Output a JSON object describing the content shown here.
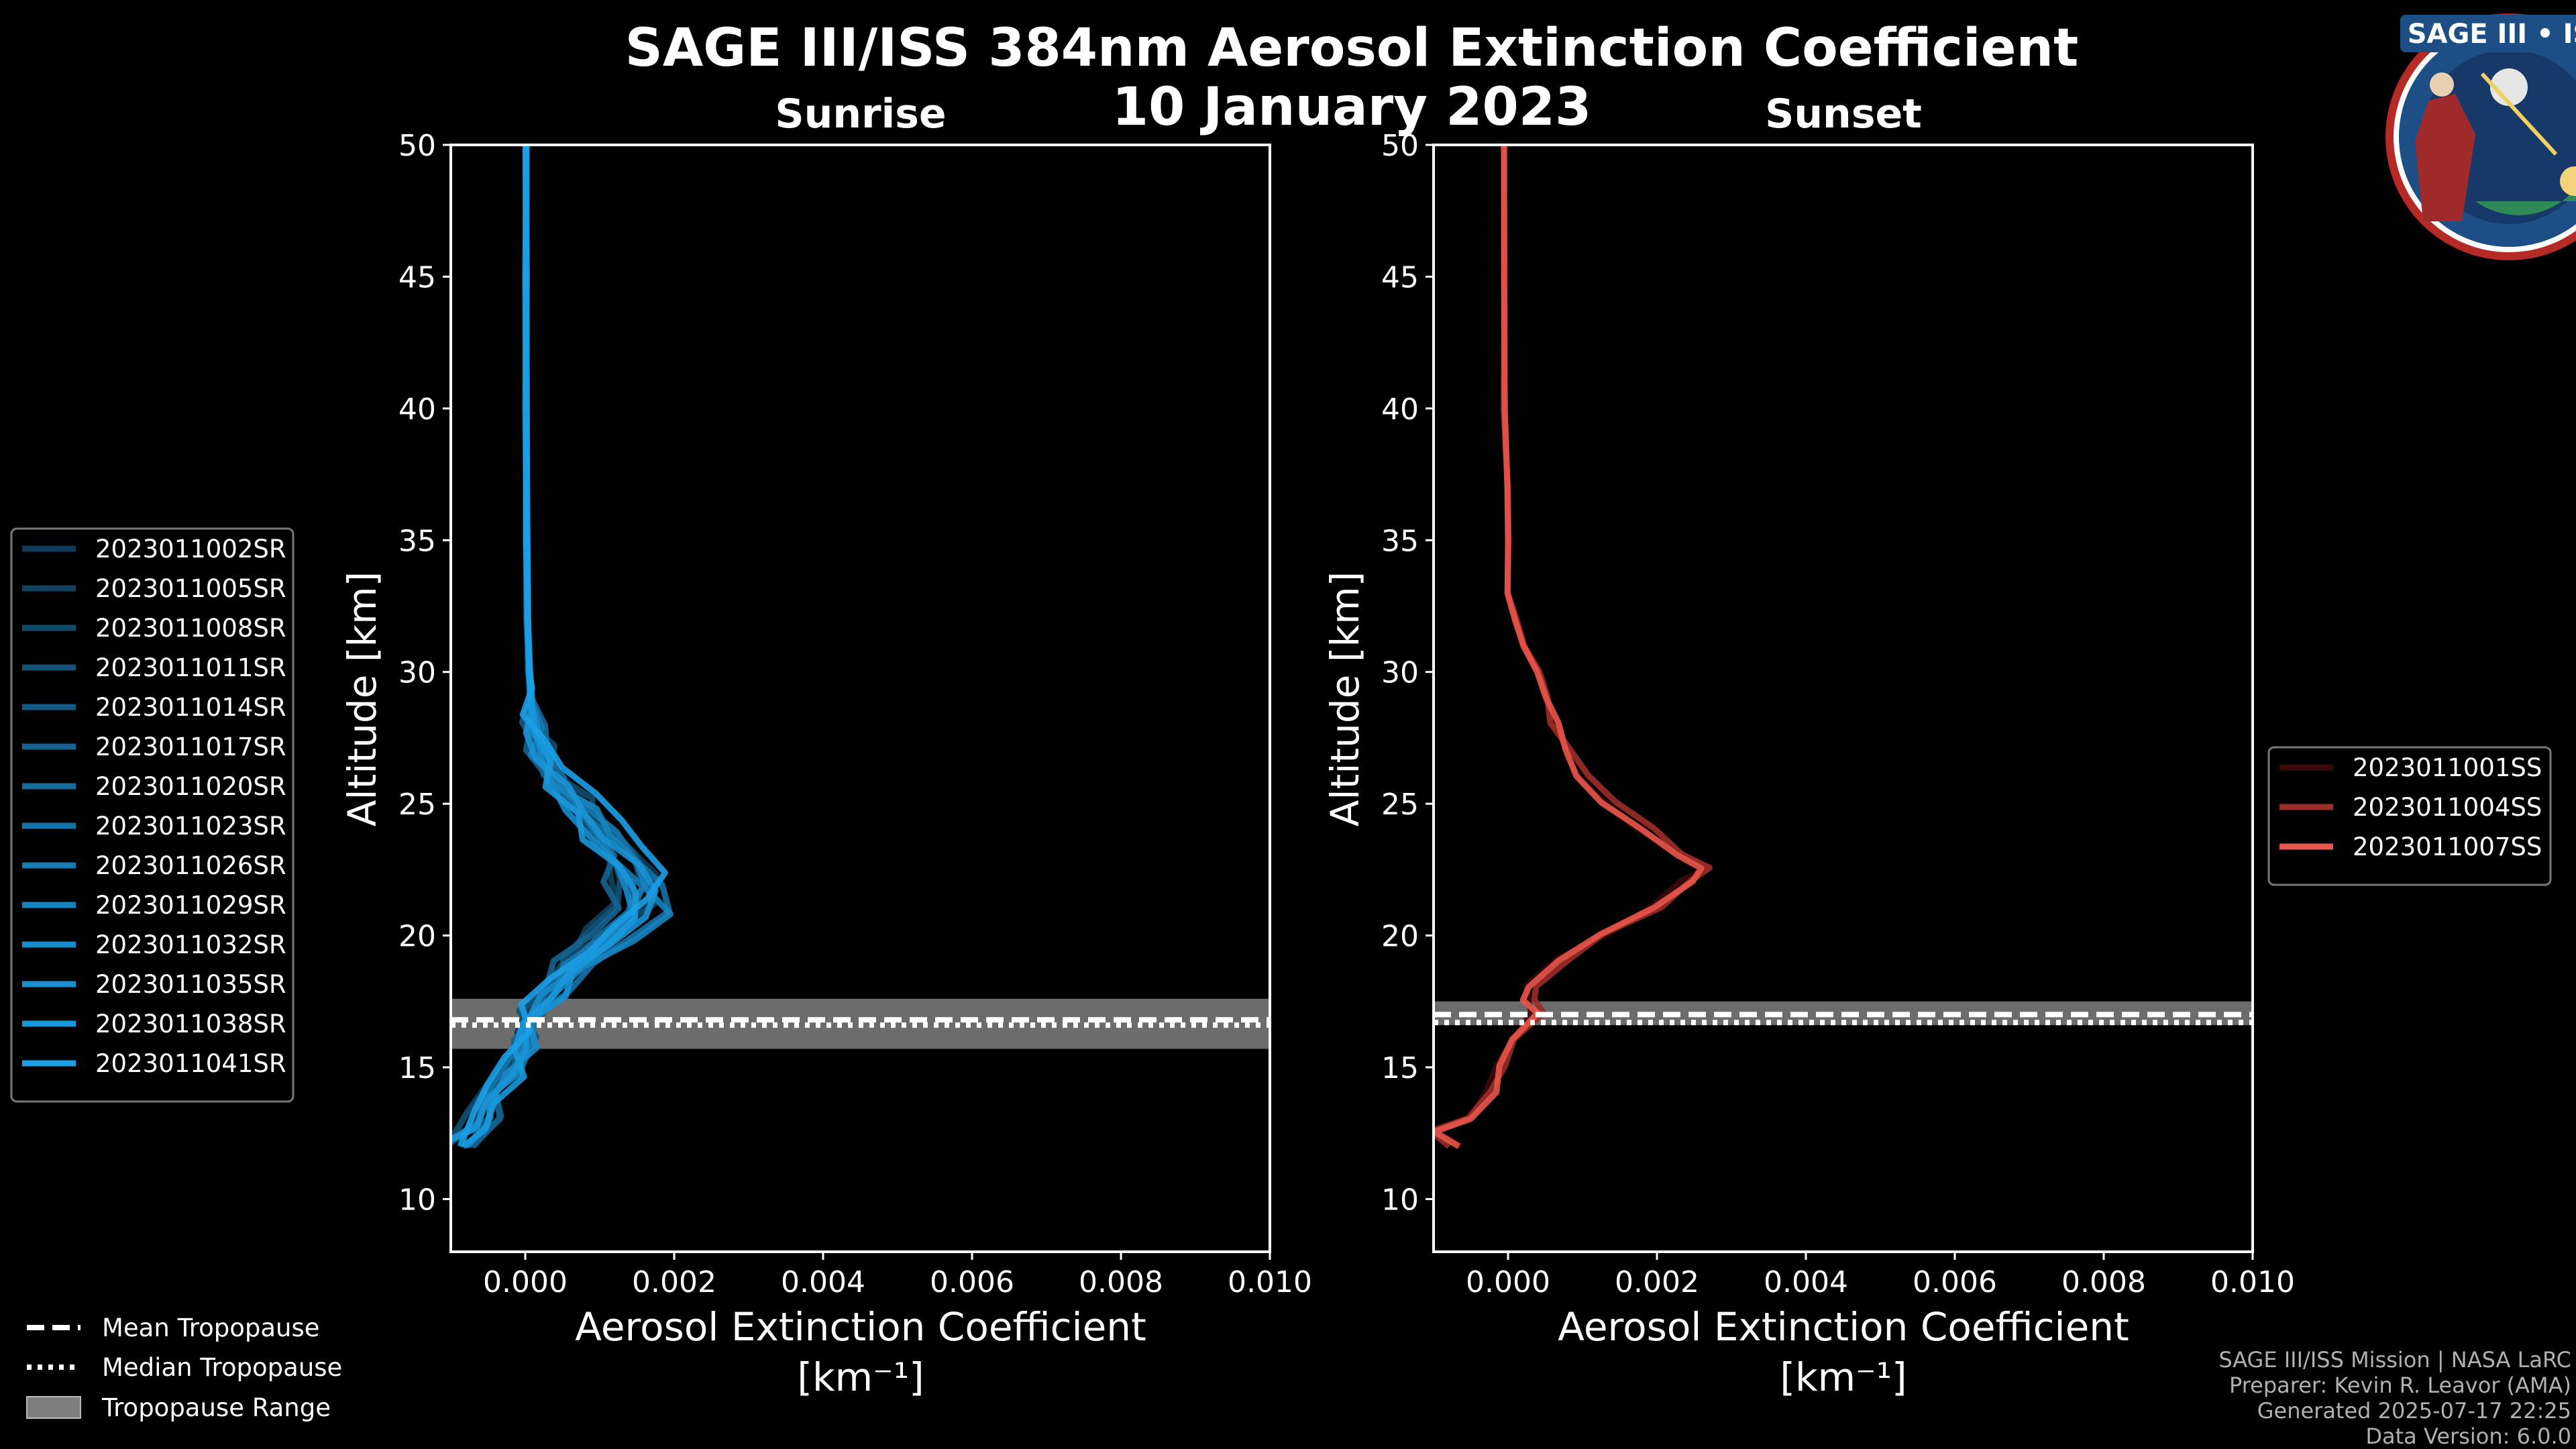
{
  "chart_data": [
    {
      "type": "line",
      "suptitle_line1": "SAGE III/ISS 384nm Aerosol Extinction Coefficient",
      "suptitle_line2": "10 January 2023",
      "title": "Sunrise",
      "xlabel_line1": "Aerosol Extinction Coefficient",
      "xlabel_line2": "[km⁻¹]",
      "ylabel": "Altitude [km]",
      "xlim": [
        -0.001,
        0.01
      ],
      "ylim": [
        8,
        50
      ],
      "xticks": [
        0.0,
        0.002,
        0.004,
        0.006,
        0.008,
        0.01
      ],
      "xtick_labels": [
        "0.000",
        "0.002",
        "0.004",
        "0.006",
        "0.008",
        "0.010"
      ],
      "yticks": [
        10,
        15,
        20,
        25,
        30,
        35,
        40,
        45,
        50
      ],
      "grid": false,
      "tropopause": {
        "mean": 16.8,
        "median": 16.6,
        "range": [
          15.7,
          17.6
        ]
      },
      "series": [
        {
          "name": "2023011002SR",
          "color": "#0e3b5c"
        },
        {
          "name": "2023011005SR",
          "color": "#10425f"
        },
        {
          "name": "2023011008SR",
          "color": "#124b6b"
        },
        {
          "name": "2023011011SR",
          "color": "#135377"
        },
        {
          "name": "2023011014SR",
          "color": "#145b83"
        },
        {
          "name": "2023011017SR",
          "color": "#15638f"
        },
        {
          "name": "2023011020SR",
          "color": "#166b9b"
        },
        {
          "name": "2023011023SR",
          "color": "#1673a7"
        },
        {
          "name": "2023011026SR",
          "color": "#177bb3"
        },
        {
          "name": "2023011029SR",
          "color": "#1883bf"
        },
        {
          "name": "2023011032SR",
          "color": "#188bca"
        },
        {
          "name": "2023011035SR",
          "color": "#1992d4"
        },
        {
          "name": "2023011038SR",
          "color": "#1a98dd"
        },
        {
          "name": "2023011041SR",
          "color": "#1b9fe6"
        }
      ],
      "profile": {
        "altitude_km": [
          12,
          13,
          14,
          15,
          16,
          17,
          18,
          19,
          20,
          21,
          22,
          23,
          24,
          25,
          26,
          27,
          28,
          29,
          30,
          32,
          35,
          40,
          45,
          50
        ],
        "extinction": [
          -0.0009,
          -0.0006,
          -0.0004,
          -0.00015,
          0.0,
          0.0001,
          0.0004,
          0.0007,
          0.0011,
          0.0015,
          0.0015,
          0.0013,
          0.001,
          0.0007,
          0.0004,
          0.00022,
          0.00012,
          8e-05,
          5e-05,
          3e-05,
          2e-05,
          1e-05,
          1e-05,
          1e-05
        ]
      }
    },
    {
      "type": "line",
      "title": "Sunset",
      "xlabel_line1": "Aerosol Extinction Coefficient",
      "xlabel_line2": "[km⁻¹]",
      "ylabel": "Altitude [km]",
      "xlim": [
        -0.001,
        0.01
      ],
      "ylim": [
        8,
        50
      ],
      "xticks": [
        0.0,
        0.002,
        0.004,
        0.006,
        0.008,
        0.01
      ],
      "xtick_labels": [
        "0.000",
        "0.002",
        "0.004",
        "0.006",
        "0.008",
        "0.010"
      ],
      "yticks": [
        10,
        15,
        20,
        25,
        30,
        35,
        40,
        45,
        50
      ],
      "grid": false,
      "tropopause": {
        "mean": 17.0,
        "median": 16.7,
        "range": [
          16.6,
          17.5
        ]
      },
      "series": [
        {
          "name": "2023011001SS",
          "color": "#3a0a0a"
        },
        {
          "name": "2023011004SS",
          "color": "#9c2e28"
        },
        {
          "name": "2023011007SS",
          "color": "#e8554a"
        }
      ],
      "profile": {
        "altitude_km": [
          12,
          12.5,
          13,
          14,
          15,
          16,
          17,
          17.5,
          18,
          19,
          20,
          21,
          22,
          22.5,
          23,
          24,
          25,
          26,
          27,
          28,
          29,
          30,
          31,
          32,
          33,
          35,
          37,
          40,
          45,
          50
        ],
        "extinction": [
          -0.0007,
          -0.0009,
          -0.0005,
          -0.0002,
          -0.0001,
          0.0001,
          0.0004,
          0.0003,
          0.0003,
          0.0007,
          0.0013,
          0.002,
          0.0024,
          0.0026,
          0.0023,
          0.0018,
          0.0013,
          0.001,
          0.0008,
          0.0006,
          0.0005,
          0.0004,
          0.0002,
          0.0001,
          0.0,
          0.0,
          0.0,
          -5e-05,
          -5e-05,
          -5e-05
        ]
      }
    }
  ],
  "common_legend": {
    "mean": "Mean Tropopause",
    "median": "Median Tropopause",
    "range": "Tropopause Range"
  },
  "logo": {
    "text": "SAGE III • ISS"
  },
  "footer": {
    "line1": "SAGE III/ISS Mission | NASA LaRC",
    "line2": "Preparer: Kevin R. Leavor (AMA)",
    "line3": "Generated 2025-07-17 22:25",
    "line4": "Data Version: 6.0.0"
  }
}
